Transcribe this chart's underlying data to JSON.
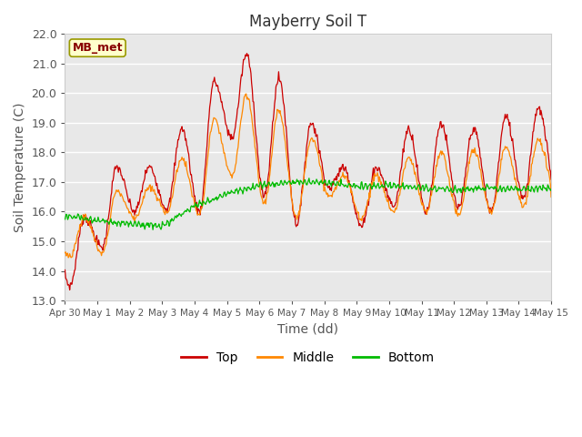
{
  "title": "Mayberry Soil T",
  "xlabel": "Time (dd)",
  "ylabel": "Soil Temperature (C)",
  "ylim": [
    13.0,
    22.0
  ],
  "yticks": [
    13.0,
    14.0,
    15.0,
    16.0,
    17.0,
    18.0,
    19.0,
    20.0,
    21.0,
    22.0
  ],
  "xtick_labels": [
    "Apr 30",
    "May 1",
    "May 2",
    "May 3",
    "May 4",
    "May 5",
    "May 6",
    "May 7",
    "May 8",
    "May 9",
    "May 10",
    "May 11",
    "May 12",
    "May 13",
    "May 14",
    "May 15"
  ],
  "legend_label": "MB_met",
  "line_colors": {
    "Top": "#CC0000",
    "Middle": "#FF8800",
    "Bottom": "#00BB00"
  },
  "legend_lines": [
    "Top",
    "Middle",
    "Bottom"
  ],
  "fig_bg": "#FFFFFF",
  "plot_bg": "#E8E8E8",
  "grid_color": "#FFFFFF",
  "title_fontsize": 12,
  "axis_fontsize": 10,
  "tick_fontsize": 9
}
